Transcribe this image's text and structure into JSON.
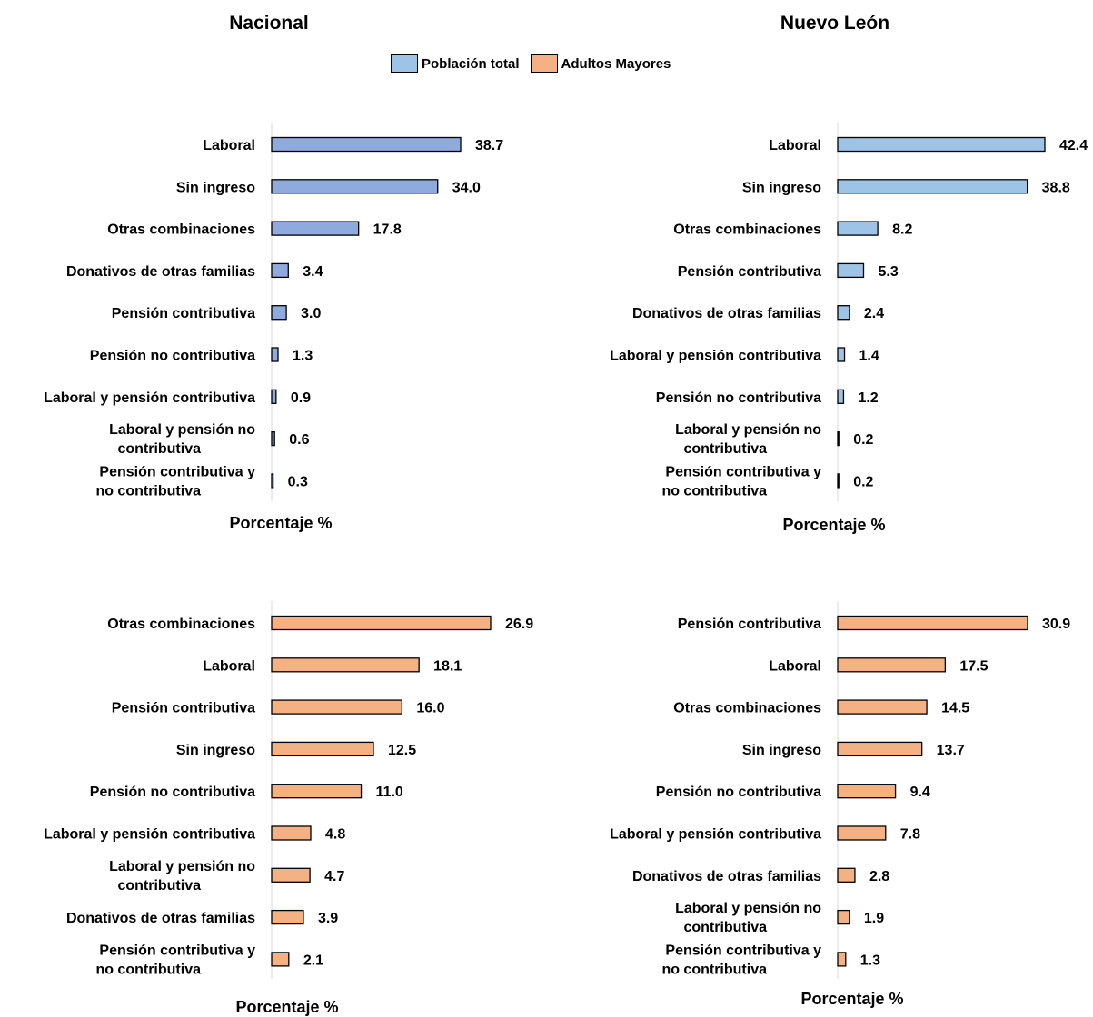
{
  "headers": {
    "left": "Nacional",
    "right": "Nuevo León"
  },
  "legend": [
    {
      "label": "Población total",
      "color": "#9dc3e6"
    },
    {
      "label": "Adultos Mayores",
      "color": "#f4b183"
    }
  ],
  "chart_data": [
    {
      "type": "bar",
      "orientation": "horizontal",
      "panel": "Nacional - Población total",
      "categories": [
        "Laboral",
        "Sin ingreso",
        "Otras combinaciones",
        "Donativos de otras familias",
        "Pensión contributiva",
        "Pensión no contributiva",
        "Laboral y pensión contributiva",
        "Laboral y pensión no contributiva",
        "Pensión contributiva y no contributiva"
      ],
      "values": [
        38.7,
        34.0,
        17.8,
        3.4,
        3.0,
        1.3,
        0.9,
        0.6,
        0.3
      ],
      "value_labels": [
        "38.7",
        "34.0",
        "17.8",
        "3.4",
        "3.0",
        "1.3",
        "0.9",
        "0.6",
        "0.3"
      ],
      "xlabel": "Porcentaje %",
      "color": "#8faadc",
      "xlim": [
        0,
        39
      ]
    },
    {
      "type": "bar",
      "orientation": "horizontal",
      "panel": "Nuevo León - Población total",
      "categories": [
        "Laboral",
        "Sin ingreso",
        "Otras combinaciones",
        "Pensión contributiva",
        "Donativos de otras familias",
        "Laboral y pensión contributiva",
        "Pensión no contributiva",
        "Laboral y pensión no contributiva",
        "Pensión contributiva y no contributiva"
      ],
      "values": [
        42.4,
        38.8,
        8.2,
        5.3,
        2.4,
        1.4,
        1.2,
        0.2,
        0.2
      ],
      "value_labels": [
        "42.4",
        "38.8",
        "8.2",
        "5.3",
        "2.4",
        "1.4",
        "1.2",
        "0.2",
        "0.2"
      ],
      "xlabel": "Porcentaje %",
      "color": "#9dc3e6",
      "xlim": [
        0,
        42.4
      ]
    },
    {
      "type": "bar",
      "orientation": "horizontal",
      "panel": "Nacional - Adultos Mayores",
      "categories": [
        "Otras combinaciones",
        "Laboral",
        "Pensión contributiva",
        "Sin ingreso",
        "Pensión no contributiva",
        "Laboral y pensión contributiva",
        "Laboral y pensión no contributiva",
        "Donativos de otras familias",
        "Pensión contributiva y no contributiva"
      ],
      "values": [
        26.9,
        18.1,
        16.0,
        12.5,
        11.0,
        4.8,
        4.7,
        3.9,
        2.1
      ],
      "value_labels": [
        "26.9",
        "18.1",
        "16.0",
        "12.5",
        "11.0",
        "4.8",
        "4.7",
        "3.9",
        "2.1"
      ],
      "xlabel": "Porcentaje %",
      "color": "#f4b183",
      "xlim": [
        0,
        28
      ]
    },
    {
      "type": "bar",
      "orientation": "horizontal",
      "panel": "Nuevo León - Adultos Mayores",
      "categories": [
        "Pensión contributiva",
        "Laboral",
        "Otras combinaciones",
        "Sin ingreso",
        "Pensión no contributiva",
        "Laboral y pensión contributiva",
        "Donativos de otras familias",
        "Laboral y pensión no contributiva",
        "Pensión contributiva y no contributiva"
      ],
      "values": [
        30.9,
        17.5,
        14.5,
        13.7,
        9.4,
        7.8,
        2.8,
        1.9,
        1.3
      ],
      "value_labels": [
        "30.9",
        "17.5",
        "14.5",
        "13.7",
        "9.4",
        "7.8",
        "2.8",
        "1.9",
        "1.3"
      ],
      "xlabel": "Porcentaje %",
      "color": "#f4b183",
      "xlim": [
        0,
        33
      ]
    }
  ]
}
